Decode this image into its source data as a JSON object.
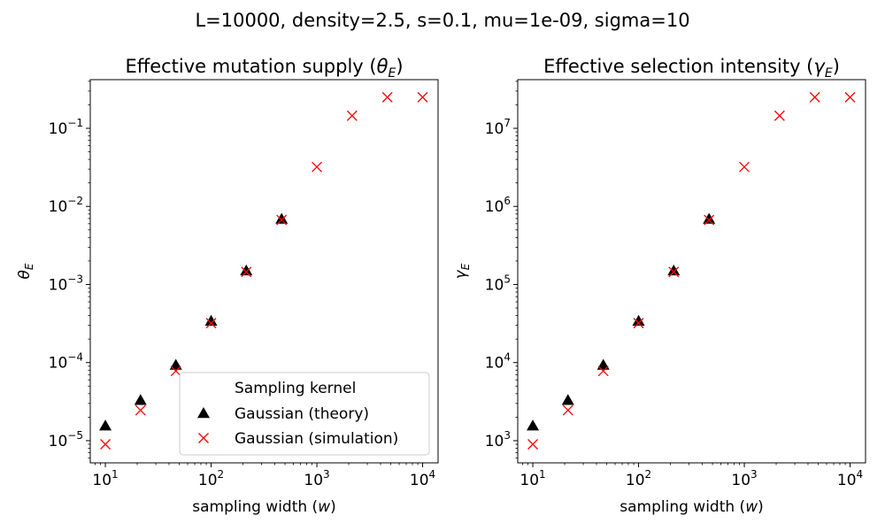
{
  "figure": {
    "suptitle": "L=10000, density=2.5, s=0.1, mu=1e-09, sigma=10"
  },
  "colors": {
    "theory": "#000000",
    "simulation": "#ff0000",
    "axis": "#000000",
    "background": "#ffffff",
    "legend_border": "#cccccc"
  },
  "chart_data": [
    {
      "type": "scatter",
      "title": "Effective mutation supply (θ_E)",
      "title_main": "Effective mutation supply (",
      "title_symbol": "θ",
      "title_sub": "E",
      "title_close": ")",
      "xlabel_main": "sampling width (",
      "xlabel_symbol": "w",
      "xlabel_close": ")",
      "ylabel_symbol": "θ",
      "ylabel_sub": "E",
      "xscale": "log",
      "yscale": "log",
      "xlim": [
        7.2,
        14000
      ],
      "ylim": [
        5.2e-06,
        0.42
      ],
      "grid": false,
      "x_ticks": [
        {
          "value": 10,
          "base": "10",
          "exp": "1"
        },
        {
          "value": 100,
          "base": "10",
          "exp": "2"
        },
        {
          "value": 1000,
          "base": "10",
          "exp": "3"
        },
        {
          "value": 10000,
          "base": "10",
          "exp": "4"
        }
      ],
      "y_ticks": [
        {
          "value": 1e-05,
          "base": "10",
          "exp": "−5"
        },
        {
          "value": 0.0001,
          "base": "10",
          "exp": "−4"
        },
        {
          "value": 0.001,
          "base": "10",
          "exp": "−3"
        },
        {
          "value": 0.01,
          "base": "10",
          "exp": "−2"
        },
        {
          "value": 0.1,
          "base": "10",
          "exp": "−1"
        }
      ],
      "legend": {
        "placement": "lower-right",
        "title": "Sampling kernel",
        "entries": [
          "Gaussian (theory)",
          "Gaussian (simulation)"
        ]
      },
      "series": [
        {
          "name": "Gaussian (theory)",
          "marker": "triangle",
          "color": "#000000",
          "x": [
            10,
            21.5,
            46.4,
            100,
            215,
            464
          ],
          "y": [
            1.55e-05,
            3.3e-05,
            9.3e-05,
            0.00034,
            0.0015,
            0.0069
          ]
        },
        {
          "name": "Gaussian (simulation)",
          "marker": "x",
          "color": "#ff0000",
          "x": [
            10,
            21.5,
            46.4,
            100,
            215,
            464,
            1000,
            2154,
            4642,
            10000
          ],
          "y": [
            9e-06,
            2.45e-05,
            7.8e-05,
            0.00032,
            0.00145,
            0.0067,
            0.032,
            0.145,
            0.25,
            0.25
          ]
        }
      ]
    },
    {
      "type": "scatter",
      "title": "Effective selection intensity (γ_E)",
      "title_main": "Effective selection intensity (",
      "title_symbol": "γ",
      "title_sub": "E",
      "title_close": ")",
      "xlabel_main": "sampling width (",
      "xlabel_symbol": "w",
      "xlabel_close": ")",
      "ylabel_symbol": "γ",
      "ylabel_sub": "E",
      "xscale": "log",
      "yscale": "log",
      "xlim": [
        7.2,
        14000
      ],
      "ylim": [
        520,
        42000000.0
      ],
      "grid": false,
      "x_ticks": [
        {
          "value": 10,
          "base": "10",
          "exp": "1"
        },
        {
          "value": 100,
          "base": "10",
          "exp": "2"
        },
        {
          "value": 1000,
          "base": "10",
          "exp": "3"
        },
        {
          "value": 10000,
          "base": "10",
          "exp": "4"
        }
      ],
      "y_ticks": [
        {
          "value": 1000.0,
          "base": "10",
          "exp": "3"
        },
        {
          "value": 10000.0,
          "base": "10",
          "exp": "4"
        },
        {
          "value": 100000.0,
          "base": "10",
          "exp": "5"
        },
        {
          "value": 1000000.0,
          "base": "10",
          "exp": "6"
        },
        {
          "value": 10000000.0,
          "base": "10",
          "exp": "7"
        }
      ],
      "legend": null,
      "series": [
        {
          "name": "Gaussian (theory)",
          "marker": "triangle",
          "color": "#000000",
          "x": [
            10,
            21.5,
            46.4,
            100,
            215,
            464
          ],
          "y": [
            1550,
            3300,
            9300,
            34000,
            150000,
            690000
          ]
        },
        {
          "name": "Gaussian (simulation)",
          "marker": "x",
          "color": "#ff0000",
          "x": [
            10,
            21.5,
            46.4,
            100,
            215,
            464,
            1000,
            2154,
            4642,
            10000
          ],
          "y": [
            900,
            2450,
            7800,
            32000,
            145000,
            670000,
            3200000,
            14500000,
            25000000,
            25000000
          ]
        }
      ]
    }
  ]
}
